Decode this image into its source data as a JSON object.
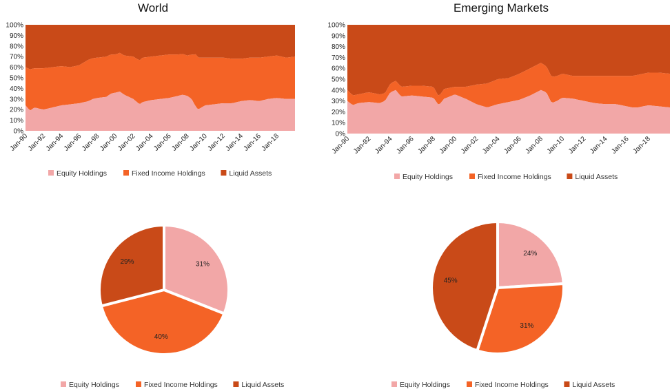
{
  "colors": {
    "equity": "#f2a7a7",
    "fixed_income": "#f46326",
    "liquid": "#c94a18"
  },
  "chart_data": [
    {
      "type": "area",
      "stacked": true,
      "title": "World",
      "yticks": [
        "0%",
        "10%",
        "20%",
        "30%",
        "40%",
        "50%",
        "60%",
        "70%",
        "80%",
        "90%",
        "100%"
      ],
      "xticks": [
        "Jan-90",
        "Jan-92",
        "Jan-94",
        "Jan-96",
        "Jan-98",
        "Jan-00",
        "Jan-02",
        "Jan-04",
        "Jan-06",
        "Jan-08",
        "Jan-10",
        "Jan-12",
        "Jan-14",
        "Jan-16",
        "Jan-18"
      ],
      "x_range": [
        1990.0,
        2020.0
      ],
      "ylim": [
        0,
        100
      ],
      "series": [
        {
          "name": "Equity Holdings",
          "x": [
            1990.0,
            1990.5,
            1991.0,
            1991.5,
            1992.0,
            1993.0,
            1994.0,
            1995.0,
            1996.0,
            1997.0,
            1997.5,
            1998.0,
            1999.0,
            1999.5,
            2000.0,
            2000.5,
            2001.0,
            2002.0,
            2002.7,
            2003.0,
            2004.0,
            2005.0,
            2006.0,
            2007.0,
            2007.5,
            2008.0,
            2008.5,
            2008.8,
            2009.2,
            2010.0,
            2011.0,
            2012.0,
            2013.0,
            2014.0,
            2015.0,
            2016.0,
            2017.0,
            2018.0,
            2019.0,
            2020.0
          ],
          "values": [
            24,
            19,
            22,
            21,
            20,
            22,
            24,
            25,
            26,
            28,
            30,
            31,
            32,
            35,
            36,
            37,
            34,
            30,
            25,
            27,
            29,
            30,
            31,
            33,
            34,
            33,
            30,
            25,
            20,
            24,
            25,
            26,
            26,
            28,
            29,
            28,
            30,
            31,
            30,
            30
          ]
        },
        {
          "name": "Fixed Income Holdings",
          "x": [
            1990.0,
            1990.5,
            1991.0,
            1992.0,
            1993.0,
            1994.0,
            1995.0,
            1996.0,
            1997.0,
            1998.0,
            1999.0,
            2000.0,
            2001.0,
            2002.0,
            2003.0,
            2004.0,
            2005.0,
            2006.0,
            2007.0,
            2008.0,
            2008.5,
            2009.0,
            2010.0,
            2011.0,
            2012.0,
            2013.0,
            2014.0,
            2015.0,
            2016.0,
            2017.0,
            2018.0,
            2019.0,
            2020.0
          ],
          "values": [
            36,
            39,
            37,
            39,
            38,
            37,
            35,
            36,
            39,
            38,
            38,
            36,
            37,
            40,
            42,
            41,
            41,
            41,
            39,
            38,
            42,
            50,
            45,
            44,
            43,
            42,
            40,
            40,
            41,
            40,
            40,
            39,
            40
          ]
        },
        {
          "name": "Liquid Assets",
          "x": [
            1990.0,
            2020.0
          ],
          "values": [
            40,
            30
          ]
        }
      ],
      "legend": {
        "position": "bottom",
        "entries": [
          "Equity Holdings",
          "Fixed Income Holdings",
          "Liquid Assets"
        ]
      }
    },
    {
      "type": "area",
      "stacked": true,
      "title": "Emerging Markets",
      "yticks": [
        "0%",
        "10%",
        "20%",
        "30%",
        "40%",
        "50%",
        "60%",
        "70%",
        "80%",
        "90%",
        "100%"
      ],
      "xticks": [
        "Jan-90",
        "Jan-92",
        "Jan-94",
        "Jan-96",
        "Jan-98",
        "Jan-00",
        "Jan-02",
        "Jan-04",
        "Jan-06",
        "Jan-08",
        "Jan-10",
        "Jan-12",
        "Jan-14",
        "Jan-16",
        "Jan-18"
      ],
      "x_range": [
        1990.0,
        2020.0
      ],
      "ylim": [
        0,
        100
      ],
      "series": [
        {
          "name": "Equity Holdings",
          "x": [
            1990.0,
            1990.5,
            1991.0,
            1992.0,
            1993.0,
            1993.5,
            1994.0,
            1994.5,
            1995.0,
            1996.0,
            1997.0,
            1998.0,
            1998.5,
            1999.0,
            2000.0,
            2001.0,
            2002.0,
            2003.0,
            2004.0,
            2005.0,
            2006.0,
            2007.0,
            2008.0,
            2008.5,
            2009.0,
            2009.5,
            2010.0,
            2011.0,
            2012.0,
            2013.0,
            2014.0,
            2015.0,
            2016.0,
            2016.5,
            2017.0,
            2018.0,
            2019.0,
            2020.0
          ],
          "values": [
            30,
            26,
            28,
            29,
            28,
            30,
            38,
            40,
            34,
            35,
            34,
            33,
            26,
            32,
            36,
            32,
            27,
            24,
            27,
            29,
            31,
            35,
            40,
            38,
            28,
            30,
            33,
            32,
            30,
            28,
            27,
            27,
            25,
            24,
            24,
            26,
            25,
            24
          ]
        },
        {
          "name": "Fixed Income Holdings",
          "x": [
            1990.0,
            1991.0,
            1992.0,
            1993.0,
            1993.5,
            1994.0,
            1995.0,
            1996.0,
            1997.0,
            1998.0,
            1998.5,
            1999.0,
            2000.0,
            2001.0,
            2002.0,
            2003.0,
            2004.0,
            2005.0,
            2006.0,
            2007.0,
            2008.0,
            2008.5,
            2009.0,
            2010.0,
            2011.0,
            2012.0,
            2013.0,
            2014.0,
            2015.0,
            2016.0,
            2017.0,
            2018.0,
            2019.0,
            2020.0
          ],
          "values": [
            10,
            8,
            9,
            8,
            7,
            8,
            9,
            9,
            10,
            10,
            8,
            9,
            7,
            11,
            18,
            22,
            23,
            22,
            24,
            25,
            25,
            24,
            24,
            22,
            21,
            23,
            25,
            26,
            26,
            28,
            30,
            30,
            31,
            31
          ]
        },
        {
          "name": "Liquid Assets",
          "x": [
            1990.0,
            2020.0
          ],
          "values": [
            60,
            45
          ]
        }
      ],
      "legend": {
        "position": "bottom",
        "entries": [
          "Equity Holdings",
          "Fixed Income Holdings",
          "Liquid Assets"
        ]
      }
    },
    {
      "type": "pie",
      "title": "",
      "categories": [
        "Equity Holdings",
        "Fixed Income Holdings",
        "Liquid Assets"
      ],
      "values": [
        31,
        40,
        29
      ],
      "data_labels": [
        "31%",
        "40%",
        "29%"
      ],
      "legend": {
        "position": "bottom",
        "entries": [
          "Equity Holdings",
          "Fixed Income Holdings",
          "Liquid Assets"
        ]
      }
    },
    {
      "type": "pie",
      "title": "",
      "categories": [
        "Equity Holdings",
        "Fixed Income Holdings",
        "Liquid Assets"
      ],
      "values": [
        24,
        31,
        45
      ],
      "data_labels": [
        "24%",
        "31%",
        "45%"
      ],
      "legend": {
        "position": "bottom",
        "entries": [
          "Equity Holdings",
          "Fixed Income Holdings",
          "Liquid Assets"
        ]
      }
    }
  ]
}
